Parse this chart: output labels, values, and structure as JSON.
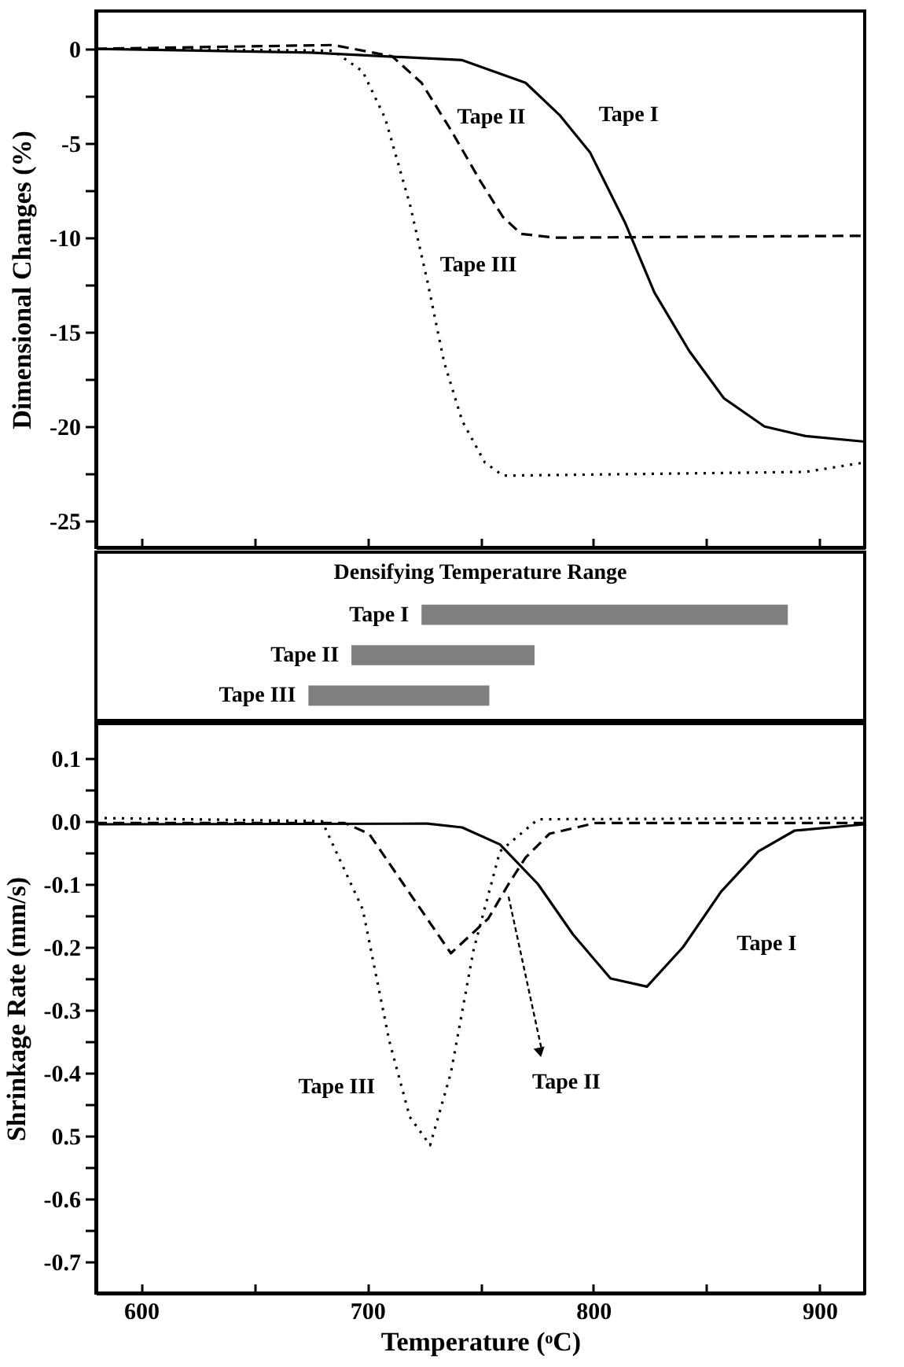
{
  "chart_data": [
    {
      "type": "line",
      "ylabel": "Dimensional Changes (%)",
      "xlim": [
        580,
        920
      ],
      "ylim": [
        -26.4,
        2
      ],
      "tick_labels": "y",
      "xticks": [
        600,
        {
          "value": 650,
          "label": null
        },
        700,
        {
          "value": 750,
          "label": null
        },
        800,
        {
          "value": 850,
          "label": null
        },
        900
      ],
      "yticks": [
        0,
        {
          "value": -2.5,
          "label": null
        },
        -5,
        {
          "value": -7.5,
          "label": null
        },
        -10,
        {
          "value": -12.5,
          "label": null
        },
        -15,
        {
          "value": -17.5,
          "label": null
        },
        -20,
        {
          "value": -22.5,
          "label": null
        },
        -25
      ],
      "series": [
        {
          "name": "Tape I",
          "color": "#000000",
          "line_style": "solid",
          "x": [
            580,
            675,
            742,
            770,
            785,
            798.6,
            814,
            827,
            842.4,
            857.7,
            875.7,
            893.8,
            920
          ],
          "values": [
            0,
            -0.2,
            -0.6,
            -1.8,
            -3.5,
            -5.5,
            -9.2,
            -12.9,
            -16,
            -18.5,
            -20,
            -20.5,
            -20.8
          ]
        },
        {
          "name": "Tape II",
          "color": "#000000",
          "line_style": "dashed",
          "x": [
            580,
            685,
            711,
            724,
            737,
            750,
            760,
            768,
            783,
            920
          ],
          "values": [
            0,
            0.2,
            -0.4,
            -1.8,
            -4.3,
            -7,
            -8.9,
            -9.8,
            -10,
            -9.9
          ]
        },
        {
          "name": "Tape III",
          "color": "#000000",
          "line_style": "dotted",
          "x": [
            580,
            685,
            698,
            708,
            719,
            726.6,
            734,
            742,
            752,
            760,
            829,
            894,
            920
          ],
          "values": [
            0,
            -0.1,
            -1.2,
            -3.7,
            -8.3,
            -12.3,
            -16.6,
            -19.7,
            -21.9,
            -22.6,
            -22.5,
            -22.4,
            -21.9
          ]
        }
      ]
    },
    {
      "type": "bar",
      "orientation": "horizontal",
      "title": "Densifying Temperature Range",
      "xlim": [
        580,
        920
      ],
      "tick_labels": false,
      "color": "#7f7f7f",
      "categories": [
        "Tape I",
        "Tape II",
        "Tape III"
      ],
      "base": [
        724,
        693,
        674
      ],
      "values": [
        162,
        81,
        80
      ]
    },
    {
      "type": "line",
      "xlabel": "Temperature (ᵒC)",
      "ylabel": "Shrinkage Rate (mm/s)",
      "xlim": [
        580,
        920
      ],
      "ylim": [
        -0.75,
        0.155
      ],
      "xticks": [
        600,
        {
          "value": 650,
          "label": null
        },
        700,
        {
          "value": 750,
          "label": null
        },
        800,
        {
          "value": 850,
          "label": null
        },
        900
      ],
      "yticks": [
        0.1,
        {
          "value": 0.05,
          "label": null
        },
        {
          "value": 0,
          "label": "0.0"
        },
        {
          "value": -0.05,
          "label": null
        },
        -0.1,
        {
          "value": -0.15,
          "label": null
        },
        -0.2,
        {
          "value": -0.25,
          "label": null
        },
        -0.3,
        {
          "value": -0.35,
          "label": null
        },
        -0.4,
        {
          "value": -0.45,
          "label": null
        },
        {
          "value": -0.5,
          "label": "0.5"
        },
        {
          "value": -0.55,
          "label": null
        },
        -0.6,
        {
          "value": -0.65,
          "label": null
        },
        -0.7
      ],
      "series": [
        {
          "name": "Tape I",
          "color": "#000000",
          "line_style": "solid",
          "x": [
            580,
            726.6,
            742,
            758.7,
            775.5,
            791,
            807.6,
            823.7,
            839.7,
            856.5,
            873,
            889,
            920
          ],
          "values": [
            -0.005,
            -0.004,
            -0.01,
            -0.037,
            -0.1,
            -0.18,
            -0.25,
            -0.263,
            -0.2,
            -0.112,
            -0.048,
            -0.015,
            -0.005
          ]
        },
        {
          "name": "Tape II",
          "color": "#000000",
          "line_style": "dashed",
          "x": [
            580,
            690,
            700.8,
            716,
            737,
            753.5,
            762.5,
            770,
            780.6,
            801,
            920
          ],
          "values": [
            -0.003,
            -0.003,
            -0.02,
            -0.1,
            -0.21,
            -0.155,
            -0.1,
            -0.058,
            -0.02,
            -0.003,
            -0.003
          ]
        },
        {
          "name": "Tape III",
          "color": "#000000",
          "line_style": "dotted",
          "x": [
            580,
            680,
            698,
            709.8,
            718.8,
            727.8,
            737,
            747,
            758.7,
            775.5,
            920
          ],
          "values": [
            0.005,
            0,
            -0.14,
            -0.35,
            -0.47,
            -0.515,
            -0.4,
            -0.205,
            -0.048,
            0.003,
            0.005
          ]
        }
      ]
    }
  ]
}
